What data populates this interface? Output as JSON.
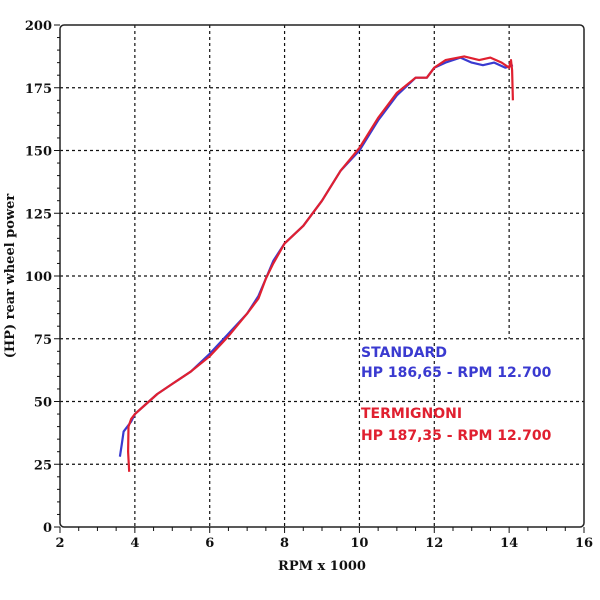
{
  "chart_data": {
    "type": "line",
    "title": "",
    "xlabel": "RPM x 1000",
    "ylabel": "(HP) rear wheel power",
    "xlim": [
      2,
      16
    ],
    "ylim": [
      0,
      200
    ],
    "xticks": [
      "2",
      "4",
      "6",
      "8",
      "10",
      "12",
      "14",
      "16"
    ],
    "yticks": [
      "0",
      "25",
      "50",
      "75",
      "100",
      "125",
      "150",
      "175",
      "200"
    ],
    "grid": true,
    "series": [
      {
        "name": "STANDARD",
        "color": "#3a3ad0",
        "x": [
          3.6,
          3.65,
          3.7,
          3.8,
          3.9,
          4.0,
          4.3,
          4.6,
          5.0,
          5.5,
          6.0,
          6.5,
          7.0,
          7.3,
          7.5,
          7.7,
          8.0,
          8.5,
          9.0,
          9.5,
          10.0,
          10.5,
          11.0,
          11.5,
          11.8,
          12.0,
          12.3,
          12.7,
          13.0,
          13.3,
          13.6,
          13.9,
          14.1
        ],
        "y": [
          28,
          33,
          38,
          40,
          42,
          45,
          49,
          53,
          57,
          62,
          69,
          77,
          85,
          92,
          99,
          106,
          113,
          120,
          130,
          142,
          150,
          162,
          172,
          179,
          179,
          183,
          185,
          187,
          185,
          184,
          185,
          183,
          184
        ]
      },
      {
        "name": "TERMIGNONI",
        "color": "#e02030",
        "x": [
          3.85,
          3.82,
          3.83,
          3.9,
          4.0,
          4.3,
          4.6,
          5.0,
          5.5,
          6.0,
          6.5,
          7.0,
          7.3,
          7.5,
          7.7,
          8.0,
          8.5,
          9.0,
          9.5,
          10.0,
          10.5,
          11.0,
          11.5,
          11.8,
          12.0,
          12.3,
          12.8,
          13.2,
          13.5,
          13.8,
          14.0,
          14.05,
          14.08,
          14.1
        ],
        "y": [
          22,
          30,
          40,
          43,
          45,
          49,
          53,
          57,
          62,
          68,
          76,
          85,
          91,
          99,
          105,
          113,
          120,
          130,
          142,
          151,
          163,
          173,
          179,
          179,
          183,
          186,
          187.5,
          186,
          187,
          185,
          183,
          186,
          182,
          170
        ]
      }
    ],
    "annotations": [
      {
        "text": "STANDARD",
        "color": "#3a3ad0"
      },
      {
        "text": "HP 186,65 - RPM 12.700",
        "color": "#3a3ad0"
      },
      {
        "text": "TERMIGNONI",
        "color": "#e02030"
      },
      {
        "text": "HP 187,35 - RPM 12.700",
        "color": "#e02030"
      }
    ],
    "legend": "none"
  }
}
